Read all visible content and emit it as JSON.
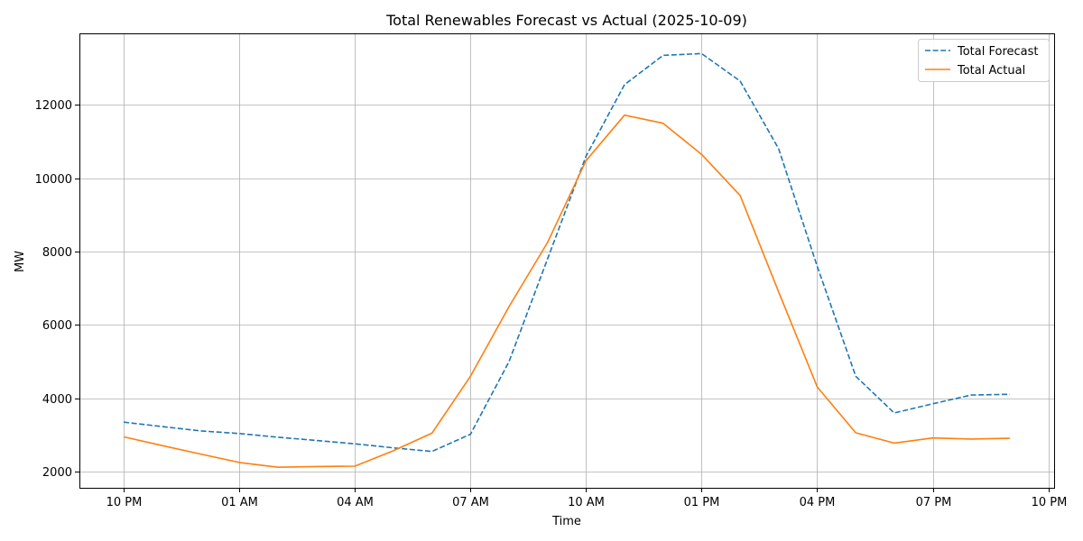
{
  "chart_data": {
    "type": "line",
    "title": "Total Renewables Forecast vs Actual (2025-10-09)",
    "xlabel": "Time",
    "ylabel": "MW",
    "x_tick_labels": [
      "10 PM",
      "01 AM",
      "04 AM",
      "07 AM",
      "10 AM",
      "01 PM",
      "04 PM",
      "07 PM",
      "10 PM"
    ],
    "x_tick_hours": [
      0,
      3,
      6,
      9,
      12,
      15,
      18,
      21,
      24
    ],
    "x_hours": [
      0,
      1,
      2,
      3,
      4,
      5,
      6,
      7,
      8,
      9,
      10,
      11,
      12,
      13,
      14,
      15,
      16,
      17,
      18,
      19,
      20,
      21,
      22,
      23
    ],
    "x_axis_start": "10 PM (2025-10-08)",
    "xlim_hours": [
      -1.15,
      24.15
    ],
    "y_ticks": [
      2000,
      4000,
      6000,
      8000,
      10000,
      12000
    ],
    "ylim": [
      1560,
      13950
    ],
    "grid": true,
    "legend_position": "top-right",
    "series": [
      {
        "name": "Total Forecast",
        "style": "dashed",
        "color": "#1f77b4",
        "values": [
          3350,
          3230,
          3110,
          3040,
          2940,
          2850,
          2760,
          2650,
          2550,
          3020,
          5000,
          7800,
          10600,
          12550,
          13350,
          13400,
          12650,
          10800,
          7600,
          4600,
          3600,
          3850,
          4090,
          4110
        ]
      },
      {
        "name": "Total Actual",
        "style": "solid",
        "color": "#ff7f0e",
        "values": [
          2950,
          2710,
          2480,
          2250,
          2120,
          2140,
          2150,
          2570,
          3050,
          4600,
          6500,
          8250,
          10480,
          11720,
          11500,
          10650,
          9530,
          6900,
          4310,
          3060,
          2780,
          2920,
          2890,
          2910
        ]
      }
    ]
  }
}
